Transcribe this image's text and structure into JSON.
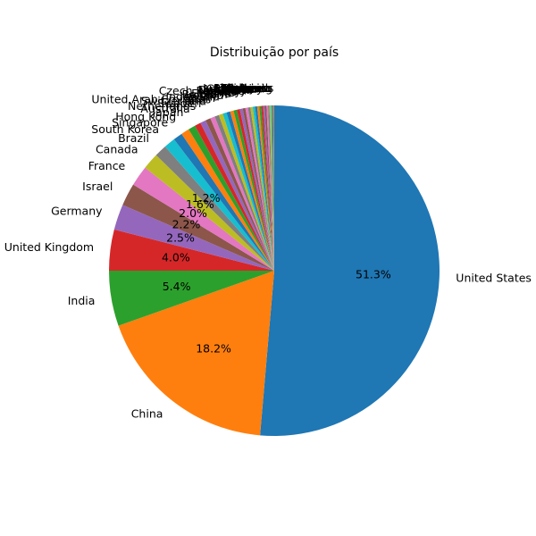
{
  "chart_data": {
    "type": "pie",
    "title": "Distribuição por país",
    "start_angle_deg": 90,
    "direction": "clockwise",
    "legend": "none",
    "slices": [
      {
        "label": "United States",
        "value": 51.3,
        "pct_text": "51.3%",
        "color": "#1f77b4"
      },
      {
        "label": "China",
        "value": 18.2,
        "pct_text": "18.2%",
        "color": "#ff7f0e"
      },
      {
        "label": "India",
        "value": 5.4,
        "pct_text": "5.4%",
        "color": "#2ca02c"
      },
      {
        "label": "United Kingdom",
        "value": 4.0,
        "pct_text": "4.0%",
        "color": "#d62728"
      },
      {
        "label": "Germany",
        "value": 2.5,
        "pct_text": "2.5%",
        "color": "#9467bd"
      },
      {
        "label": "Israel",
        "value": 2.2,
        "pct_text": "2.2%",
        "color": "#8c564b"
      },
      {
        "label": "France",
        "value": 2.0,
        "pct_text": "2.0%",
        "color": "#e377c2"
      },
      {
        "label": "Canada",
        "value": 1.6,
        "pct_text": "1.6%",
        "color": "#bcbd22"
      },
      {
        "label": "Brazil",
        "value": 1.2,
        "pct_text": "1.2%",
        "color": "#7f7f7f"
      },
      {
        "label": "South Korea",
        "value": 1.1,
        "pct_text": "",
        "color": "#17becf"
      },
      {
        "label": "Singapore",
        "value": 0.9,
        "pct_text": "",
        "color": "#1f77b4"
      },
      {
        "label": "Hong Kong",
        "value": 0.8,
        "pct_text": "",
        "color": "#ff7f0e"
      },
      {
        "label": "Japan",
        "value": 0.7,
        "pct_text": "",
        "color": "#2ca02c"
      },
      {
        "label": "Australia",
        "value": 0.6,
        "pct_text": "",
        "color": "#d62728"
      },
      {
        "label": "Netherlands",
        "value": 0.55,
        "pct_text": "",
        "color": "#9467bd"
      },
      {
        "label": "Sweden",
        "value": 0.5,
        "pct_text": "",
        "color": "#8c564b"
      },
      {
        "label": "Switzerland",
        "value": 0.45,
        "pct_text": "",
        "color": "#e377c2"
      },
      {
        "label": "United Arab Emirates",
        "value": 0.42,
        "pct_text": "",
        "color": "#7f7f7f"
      },
      {
        "label": "Spain",
        "value": 0.4,
        "pct_text": "",
        "color": "#bcbd22"
      },
      {
        "label": "Indonesia",
        "value": 0.38,
        "pct_text": "",
        "color": "#17becf"
      },
      {
        "label": "Ireland",
        "value": 0.36,
        "pct_text": "",
        "color": "#1f77b4"
      },
      {
        "label": "Belgium",
        "value": 0.34,
        "pct_text": "",
        "color": "#ff7f0e"
      },
      {
        "label": "Finland",
        "value": 0.32,
        "pct_text": "",
        "color": "#2ca02c"
      },
      {
        "label": "Chile",
        "value": 0.3,
        "pct_text": "",
        "color": "#d62728"
      },
      {
        "label": "Mexico",
        "value": 0.28,
        "pct_text": "",
        "color": "#9467bd"
      },
      {
        "label": "Norway",
        "value": 0.26,
        "pct_text": "",
        "color": "#8c564b"
      },
      {
        "label": "Czech Republic",
        "value": 0.25,
        "pct_text": "",
        "color": "#e377c2"
      },
      {
        "label": "Italy",
        "value": 0.24,
        "pct_text": "",
        "color": "#7f7f7f"
      },
      {
        "label": "Denmark",
        "value": 0.23,
        "pct_text": "",
        "color": "#bcbd22"
      },
      {
        "label": "Austria",
        "value": 0.22,
        "pct_text": "",
        "color": "#17becf"
      },
      {
        "label": "Estonia",
        "value": 0.21,
        "pct_text": "",
        "color": "#1f77b4"
      },
      {
        "label": "Argentina",
        "value": 0.2,
        "pct_text": "",
        "color": "#ff7f0e"
      },
      {
        "label": "Colombia",
        "value": 0.19,
        "pct_text": "",
        "color": "#2ca02c"
      },
      {
        "label": "Nigeria",
        "value": 0.18,
        "pct_text": "",
        "color": "#d62728"
      },
      {
        "label": "Turkey",
        "value": 0.17,
        "pct_text": "",
        "color": "#9467bd"
      },
      {
        "label": "Poland",
        "value": 0.16,
        "pct_text": "",
        "color": "#8c564b"
      },
      {
        "label": "Lithuania",
        "value": 0.15,
        "pct_text": "",
        "color": "#e377c2"
      },
      {
        "label": "Thailand",
        "value": 0.14,
        "pct_text": "",
        "color": "#7f7f7f"
      },
      {
        "label": "Vietnam",
        "value": 0.13,
        "pct_text": "",
        "color": "#bcbd22"
      },
      {
        "label": "Malaysia",
        "value": 0.12,
        "pct_text": "",
        "color": "#17becf"
      },
      {
        "label": "Luxembourg",
        "value": 0.11,
        "pct_text": "",
        "color": "#1f77b4"
      },
      {
        "label": "Philippines",
        "value": 0.1,
        "pct_text": "",
        "color": "#ff7f0e"
      }
    ]
  }
}
